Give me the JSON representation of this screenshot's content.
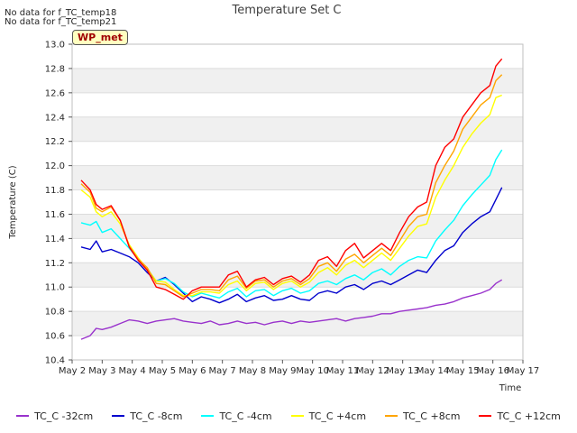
{
  "notes": [
    "No data for f_TC_temp18",
    "No data for f_TC_temp21"
  ],
  "badge": "WP_met",
  "chart_data": {
    "type": "line",
    "title": "Temperature Set C",
    "xlabel": "Time",
    "ylabel": "Temperature (C)",
    "xlim": [
      2,
      17
    ],
    "ylim": [
      10.4,
      13.0
    ],
    "x_ticks": [
      2,
      3,
      4,
      5,
      6,
      7,
      8,
      9,
      10,
      11,
      12,
      13,
      14,
      15,
      16,
      17
    ],
    "x_tick_labels": [
      "May 2",
      "May 3",
      "May 4",
      "May 5",
      "May 6",
      "May 7",
      "May 8",
      "May 9",
      "May 10",
      "May 11",
      "May 12",
      "May 13",
      "May 14",
      "May 15",
      "May 16",
      "May 17"
    ],
    "y_ticks": [
      10.4,
      10.6,
      10.8,
      11.0,
      11.2,
      11.4,
      11.6,
      11.8,
      12.0,
      12.2,
      12.4,
      12.6,
      12.8,
      13.0
    ],
    "y_tick_labels": [
      "10.4",
      "10.6",
      "10.8",
      "11.0",
      "11.2",
      "11.4",
      "11.6",
      "11.8",
      "12.0",
      "12.2",
      "12.4",
      "12.6",
      "12.8",
      "13.0"
    ],
    "grid": true,
    "shaded_bands": true,
    "legend_position": "bottom",
    "series": [
      {
        "name": "TC_C -32cm",
        "color": "#9932cc",
        "x": [
          2.3,
          2.6,
          2.8,
          3.0,
          3.3,
          3.6,
          3.9,
          4.2,
          4.5,
          4.8,
          5.1,
          5.4,
          5.7,
          6.0,
          6.3,
          6.6,
          6.9,
          7.2,
          7.5,
          7.8,
          8.1,
          8.4,
          8.7,
          9.0,
          9.3,
          9.6,
          9.9,
          10.2,
          10.5,
          10.8,
          11.1,
          11.4,
          11.7,
          12.0,
          12.3,
          12.6,
          12.9,
          13.2,
          13.5,
          13.8,
          14.1,
          14.4,
          14.7,
          15.0,
          15.3,
          15.6,
          15.9,
          16.1,
          16.3
        ],
        "y": [
          10.57,
          10.6,
          10.66,
          10.65,
          10.67,
          10.7,
          10.73,
          10.72,
          10.7,
          10.72,
          10.73,
          10.74,
          10.72,
          10.71,
          10.7,
          10.72,
          10.69,
          10.7,
          10.72,
          10.7,
          10.71,
          10.69,
          10.71,
          10.72,
          10.7,
          10.72,
          10.71,
          10.72,
          10.73,
          10.74,
          10.72,
          10.74,
          10.75,
          10.76,
          10.78,
          10.78,
          10.8,
          10.81,
          10.82,
          10.83,
          10.85,
          10.86,
          10.88,
          10.91,
          10.93,
          10.95,
          10.98,
          11.03,
          11.06
        ]
      },
      {
        "name": "TC_C -8cm",
        "color": "#0000cd",
        "x": [
          2.3,
          2.6,
          2.8,
          3.0,
          3.3,
          3.6,
          3.9,
          4.2,
          4.5,
          4.8,
          5.1,
          5.4,
          5.7,
          6.0,
          6.3,
          6.6,
          6.9,
          7.2,
          7.5,
          7.8,
          8.1,
          8.4,
          8.7,
          9.0,
          9.3,
          9.6,
          9.9,
          10.2,
          10.5,
          10.8,
          11.1,
          11.4,
          11.7,
          12.0,
          12.3,
          12.6,
          12.9,
          13.2,
          13.5,
          13.8,
          14.1,
          14.4,
          14.7,
          15.0,
          15.3,
          15.6,
          15.9,
          16.1,
          16.3
        ],
        "y": [
          11.33,
          11.31,
          11.38,
          11.29,
          11.31,
          11.28,
          11.25,
          11.2,
          11.12,
          11.05,
          11.08,
          11.02,
          10.95,
          10.88,
          10.92,
          10.9,
          10.87,
          10.9,
          10.94,
          10.88,
          10.91,
          10.93,
          10.89,
          10.9,
          10.93,
          10.9,
          10.89,
          10.95,
          10.97,
          10.95,
          11.0,
          11.02,
          10.98,
          11.03,
          11.05,
          11.02,
          11.06,
          11.1,
          11.14,
          11.12,
          11.22,
          11.3,
          11.34,
          11.45,
          11.52,
          11.58,
          11.62,
          11.72,
          11.82
        ]
      },
      {
        "name": "TC_C -4cm",
        "color": "#00ffff",
        "x": [
          2.3,
          2.6,
          2.8,
          3.0,
          3.3,
          3.6,
          3.9,
          4.2,
          4.5,
          4.8,
          5.1,
          5.4,
          5.7,
          6.0,
          6.3,
          6.6,
          6.9,
          7.2,
          7.5,
          7.8,
          8.1,
          8.4,
          8.7,
          9.0,
          9.3,
          9.6,
          9.9,
          10.2,
          10.5,
          10.8,
          11.1,
          11.4,
          11.7,
          12.0,
          12.3,
          12.6,
          12.9,
          13.2,
          13.5,
          13.8,
          14.1,
          14.4,
          14.7,
          15.0,
          15.3,
          15.6,
          15.9,
          16.1,
          16.3
        ],
        "y": [
          11.53,
          11.51,
          11.54,
          11.45,
          11.48,
          11.4,
          11.32,
          11.23,
          11.15,
          11.05,
          11.07,
          11.03,
          10.96,
          10.92,
          10.95,
          10.93,
          10.91,
          10.96,
          10.99,
          10.92,
          10.97,
          10.98,
          10.93,
          10.97,
          10.99,
          10.95,
          10.97,
          11.03,
          11.05,
          11.02,
          11.07,
          11.1,
          11.06,
          11.12,
          11.15,
          11.1,
          11.17,
          11.22,
          11.25,
          11.24,
          11.38,
          11.47,
          11.55,
          11.67,
          11.76,
          11.84,
          11.92,
          12.05,
          12.13
        ]
      },
      {
        "name": "TC_C +4cm",
        "color": "#ffff00",
        "x": [
          2.3,
          2.6,
          2.8,
          3.0,
          3.3,
          3.6,
          3.9,
          4.2,
          4.5,
          4.8,
          5.1,
          5.4,
          5.7,
          6.0,
          6.3,
          6.6,
          6.9,
          7.2,
          7.5,
          7.8,
          8.1,
          8.4,
          8.7,
          9.0,
          9.3,
          9.6,
          9.9,
          10.2,
          10.5,
          10.8,
          11.1,
          11.4,
          11.7,
          12.0,
          12.3,
          12.6,
          12.9,
          13.2,
          13.5,
          13.8,
          14.1,
          14.4,
          14.7,
          15.0,
          15.3,
          15.6,
          15.9,
          16.1,
          16.3
        ],
        "y": [
          11.8,
          11.74,
          11.62,
          11.58,
          11.62,
          11.52,
          11.35,
          11.24,
          11.15,
          11.05,
          11.04,
          10.98,
          10.93,
          10.93,
          10.96,
          10.96,
          10.95,
          11.02,
          11.05,
          10.97,
          11.03,
          11.04,
          10.98,
          11.03,
          11.05,
          11.0,
          11.04,
          11.12,
          11.16,
          11.1,
          11.18,
          11.22,
          11.16,
          11.22,
          11.28,
          11.22,
          11.32,
          11.42,
          11.5,
          11.52,
          11.74,
          11.88,
          12.0,
          12.15,
          12.26,
          12.35,
          12.42,
          12.56,
          12.58
        ]
      },
      {
        "name": "TC_C +8cm",
        "color": "#ffa500",
        "x": [
          2.3,
          2.6,
          2.8,
          3.0,
          3.3,
          3.6,
          3.9,
          4.2,
          4.5,
          4.8,
          5.1,
          5.4,
          5.7,
          6.0,
          6.3,
          6.6,
          6.9,
          7.2,
          7.5,
          7.8,
          8.1,
          8.4,
          8.7,
          9.0,
          9.3,
          9.6,
          9.9,
          10.2,
          10.5,
          10.8,
          11.1,
          11.4,
          11.7,
          12.0,
          12.3,
          12.6,
          12.9,
          13.2,
          13.5,
          13.8,
          14.1,
          14.4,
          14.7,
          15.0,
          15.3,
          15.6,
          15.9,
          16.1,
          16.3
        ],
        "y": [
          11.85,
          11.78,
          11.65,
          11.62,
          11.66,
          11.55,
          11.34,
          11.23,
          11.16,
          11.03,
          11.02,
          10.97,
          10.92,
          10.95,
          10.98,
          10.98,
          10.97,
          11.06,
          11.09,
          10.99,
          11.05,
          11.06,
          11.0,
          11.05,
          11.07,
          11.02,
          11.07,
          11.17,
          11.2,
          11.13,
          11.23,
          11.27,
          11.2,
          11.26,
          11.32,
          11.26,
          11.38,
          11.5,
          11.58,
          11.6,
          11.86,
          12.0,
          12.12,
          12.3,
          12.4,
          12.5,
          12.56,
          12.7,
          12.75
        ]
      },
      {
        "name": "TC_C +12cm",
        "color": "#ff0000",
        "x": [
          2.3,
          2.6,
          2.8,
          3.0,
          3.3,
          3.6,
          3.9,
          4.2,
          4.5,
          4.8,
          5.1,
          5.4,
          5.7,
          6.0,
          6.3,
          6.6,
          6.9,
          7.2,
          7.5,
          7.8,
          8.1,
          8.4,
          8.7,
          9.0,
          9.3,
          9.6,
          9.9,
          10.2,
          10.5,
          10.8,
          11.1,
          11.4,
          11.7,
          12.0,
          12.3,
          12.6,
          12.9,
          13.2,
          13.5,
          13.8,
          14.1,
          14.4,
          14.7,
          15.0,
          15.3,
          15.6,
          15.9,
          16.1,
          16.3
        ],
        "y": [
          11.88,
          11.8,
          11.68,
          11.64,
          11.67,
          11.55,
          11.33,
          11.22,
          11.14,
          11.0,
          10.98,
          10.94,
          10.9,
          10.97,
          11.0,
          11.0,
          11.0,
          11.1,
          11.13,
          11.0,
          11.06,
          11.08,
          11.02,
          11.07,
          11.09,
          11.04,
          11.1,
          11.22,
          11.25,
          11.17,
          11.3,
          11.36,
          11.24,
          11.3,
          11.36,
          11.3,
          11.45,
          11.58,
          11.66,
          11.7,
          12.0,
          12.15,
          12.22,
          12.4,
          12.5,
          12.6,
          12.66,
          12.82,
          12.88
        ]
      }
    ]
  }
}
